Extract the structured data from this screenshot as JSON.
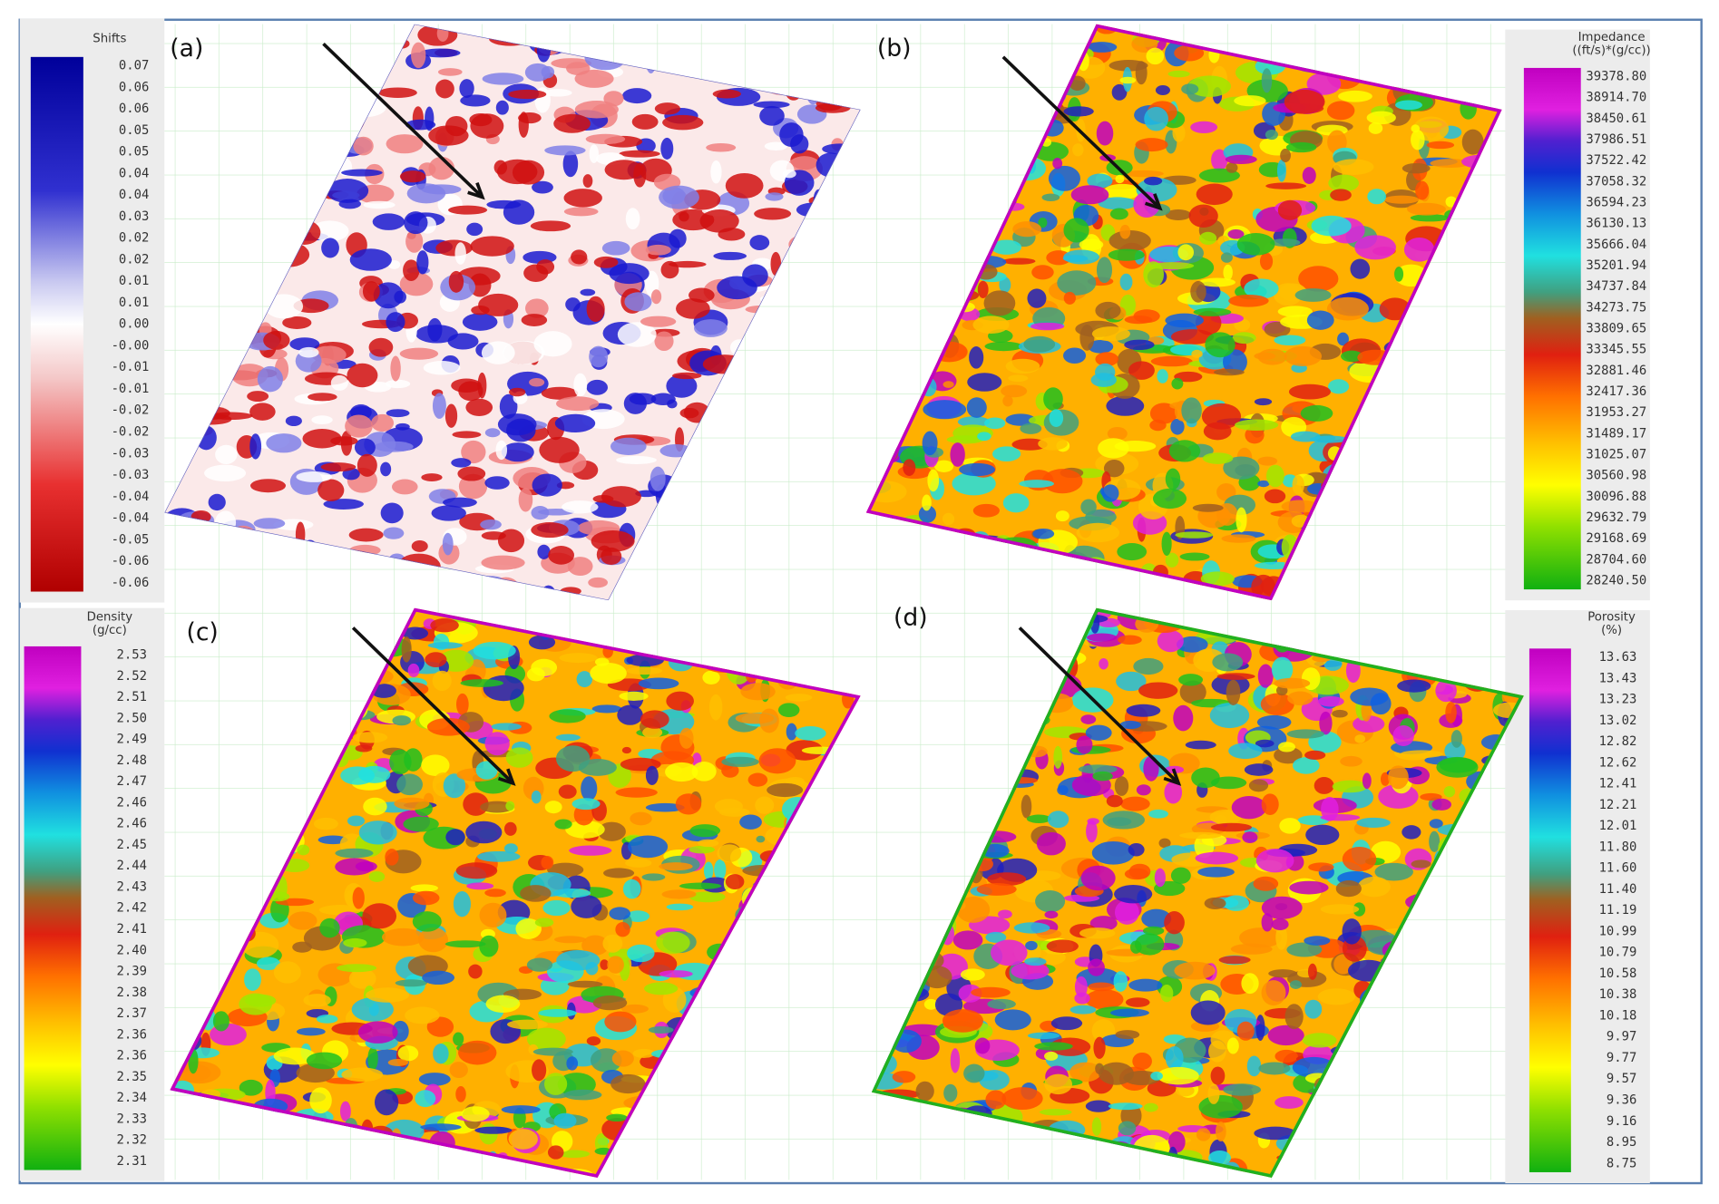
{
  "panels": [
    {
      "label": "(a)",
      "colorbar": {
        "title": "Shifts",
        "labels": [
          "0.07",
          "0.06",
          "0.06",
          "0.05",
          "0.05",
          "0.04",
          "0.04",
          "0.03",
          "0.02",
          "0.02",
          "0.01",
          "0.01",
          "0.00",
          "-0.00",
          "-0.01",
          "-0.01",
          "-0.02",
          "-0.02",
          "-0.03",
          "-0.03",
          "-0.04",
          "-0.04",
          "-0.05",
          "-0.06",
          "-0.06"
        ]
      }
    },
    {
      "label": "(b)",
      "colorbar": {
        "title": "Impedance",
        "unit": "((ft/s)*(g/cc))",
        "labels": [
          "39378.80",
          "38914.70",
          "38450.61",
          "37986.51",
          "37522.42",
          "37058.32",
          "36594.23",
          "36130.13",
          "35666.04",
          "35201.94",
          "34737.84",
          "34273.75",
          "33809.65",
          "33345.55",
          "32881.46",
          "32417.36",
          "31953.27",
          "31489.17",
          "31025.07",
          "30560.98",
          "30096.88",
          "29632.79",
          "29168.69",
          "28704.60",
          "28240.50"
        ]
      }
    },
    {
      "label": "(c)",
      "colorbar": {
        "title": "Density",
        "unit": "(g/cc)",
        "labels": [
          "2.53",
          "2.52",
          "2.51",
          "2.50",
          "2.49",
          "2.48",
          "2.47",
          "2.46",
          "2.46",
          "2.45",
          "2.44",
          "2.43",
          "2.42",
          "2.41",
          "2.40",
          "2.39",
          "2.38",
          "2.37",
          "2.36",
          "2.36",
          "2.35",
          "2.34",
          "2.33",
          "2.32",
          "2.31"
        ]
      }
    },
    {
      "label": "(d)",
      "colorbar": {
        "title": "Porosity",
        "unit": "(%)",
        "labels": [
          "13.63",
          "13.43",
          "13.23",
          "13.02",
          "12.82",
          "12.62",
          "12.41",
          "12.21",
          "12.01",
          "11.80",
          "11.60",
          "11.40",
          "11.19",
          "10.99",
          "10.79",
          "10.58",
          "10.38",
          "10.18",
          "9.97",
          "9.77",
          "9.57",
          "9.36",
          "9.16",
          "8.95",
          "8.75"
        ]
      }
    }
  ]
}
